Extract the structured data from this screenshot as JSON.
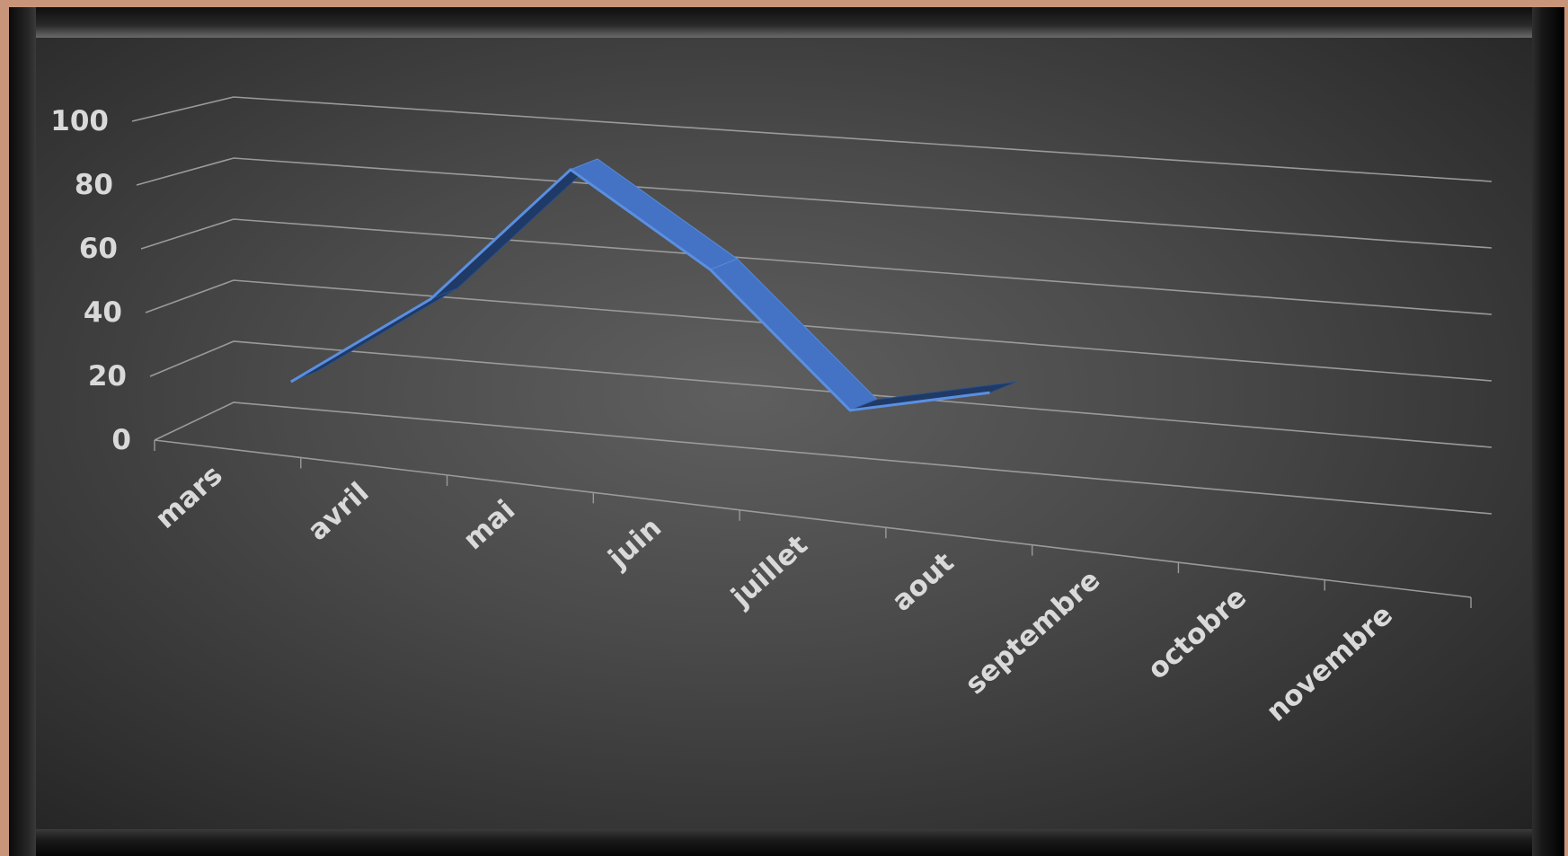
{
  "chart_data": {
    "type": "line",
    "style": "3d",
    "categories": [
      "mars",
      "avril",
      "mai",
      "juin",
      "juillet",
      "aout",
      "septembre",
      "octobre",
      "novembre"
    ],
    "series": [
      {
        "values": [
          12,
          42,
          86,
          58,
          18,
          27,
          null,
          null,
          null
        ],
        "color": "#4472c4"
      }
    ],
    "y_ticks": [
      "0",
      "20",
      "40",
      "60",
      "80",
      "100"
    ],
    "ylim": [
      0,
      100
    ],
    "grid": true,
    "legend": "none",
    "title": "",
    "xlabel": "",
    "ylabel": ""
  },
  "colors": {
    "series": "#4472c4",
    "series_dark": "#1f3a66",
    "gridline": "#9a9a9a",
    "text": "#d9d9d9",
    "border": "#c9957a"
  }
}
